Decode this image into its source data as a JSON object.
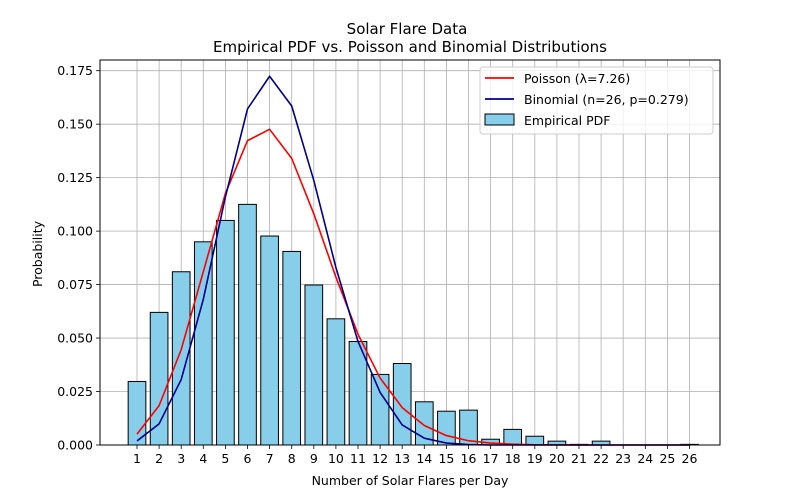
{
  "chart_data": {
    "type": "bar",
    "title": "Solar Flare Data",
    "subtitle": "Empirical PDF vs. Poisson and Binomial Distributions",
    "xlabel": "Number of Solar Flares per Day",
    "ylabel": "Probability",
    "categories": [
      "1",
      "2",
      "3",
      "4",
      "5",
      "6",
      "7",
      "8",
      "9",
      "10",
      "11",
      "12",
      "13",
      "14",
      "15",
      "16",
      "17",
      "18",
      "19",
      "20",
      "21",
      "22",
      "23",
      "24",
      "25",
      "26"
    ],
    "ylim": [
      0,
      0.18
    ],
    "yticks": [
      "0.000",
      "0.025",
      "0.050",
      "0.075",
      "0.100",
      "0.125",
      "0.150",
      "0.175"
    ],
    "grid": true,
    "legend_position": "top-right",
    "bar_series": {
      "name": "Empirical PDF",
      "color": "#87ceeb",
      "edge_color": "#000000",
      "values": [
        0.0297,
        0.062,
        0.081,
        0.095,
        0.105,
        0.1125,
        0.0977,
        0.0905,
        0.0748,
        0.059,
        0.0484,
        0.033,
        0.0381,
        0.0202,
        0.0158,
        0.0163,
        0.0027,
        0.0073,
        0.0041,
        0.0018,
        0.0003,
        0.0018,
        0.0,
        0.0,
        0.0,
        0.0003
      ]
    },
    "series": [
      {
        "name": "Poisson (λ=7.26)",
        "color": "#ff0000",
        "values": [
          0.0051,
          0.0184,
          0.0446,
          0.081,
          0.1176,
          0.1423,
          0.1476,
          0.134,
          0.1081,
          0.0785,
          0.0518,
          0.0313,
          0.0175,
          0.0091,
          0.0044,
          0.002,
          0.0009,
          0.0004,
          0.0001,
          0.0001,
          0.0,
          0.0,
          0.0,
          0.0,
          0.0,
          0.0
        ]
      },
      {
        "name": "Binomial (n=26, p=0.279)",
        "color": "#00008b",
        "values": [
          0.0019,
          0.0099,
          0.0306,
          0.0681,
          0.116,
          0.1571,
          0.1724,
          0.1585,
          0.1237,
          0.083,
          0.0484,
          0.0246,
          0.0094,
          0.0032,
          0.0009,
          0.0002,
          0.0,
          0.0,
          0.0,
          0.0,
          0.0,
          0.0,
          0.0,
          0.0,
          0.0,
          0.0
        ]
      }
    ]
  }
}
